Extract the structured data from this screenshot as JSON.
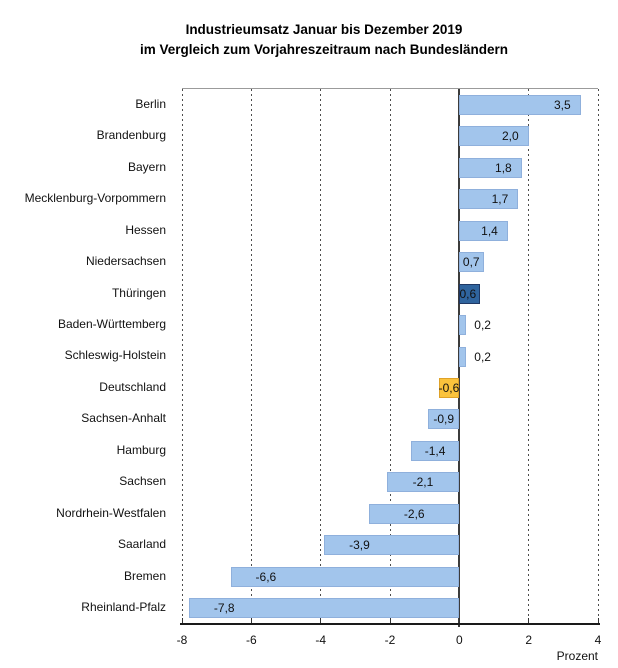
{
  "title": {
    "line1": "Industrieumsatz Januar bis Dezember 2019",
    "line2": "im Vergleich zum Vorjahreszeitraum nach Bundesländern"
  },
  "chart_data": {
    "type": "bar",
    "orientation": "horizontal",
    "title": "Industrieumsatz Januar bis Dezember 2019 im Vergleich zum Vorjahreszeitraum nach Bundesländern",
    "xlabel": "Prozent",
    "xlim": [
      -8,
      4
    ],
    "xticks": [
      -8,
      -6,
      -4,
      -2,
      0,
      2,
      4
    ],
    "xtick_labels": [
      "-8",
      "-6",
      "-4",
      "-2",
      "0",
      "2",
      "4"
    ],
    "grid": "dashed-vertical",
    "legend": "none",
    "categories": [
      "Berlin",
      "Brandenburg",
      "Bayern",
      "Mecklenburg-Vorpommern",
      "Hessen",
      "Niedersachsen",
      "Thüringen",
      "Baden-Württemberg",
      "Schleswig-Holstein",
      "Deutschland",
      "Sachsen-Anhalt",
      "Hamburg",
      "Sachsen",
      "Nordrhein-Westfalen",
      "Saarland",
      "Bremen",
      "Rheinland-Pfalz"
    ],
    "values": [
      3.5,
      2.0,
      1.8,
      1.7,
      1.4,
      0.7,
      0.6,
      0.2,
      0.2,
      -0.6,
      -0.9,
      -1.4,
      -2.1,
      -2.6,
      -3.9,
      -6.6,
      -7.8
    ],
    "value_labels": [
      "3,5",
      "2,0",
      "1,8",
      "1,7",
      "1,4",
      "0,7",
      "0,6",
      "0,2",
      "0,2",
      "-0,6",
      "-0,9",
      "-1,4",
      "-2,1",
      "-2,6",
      "-3,9",
      "-6,6",
      "-7,8"
    ],
    "highlighted_bars": {
      "6": {
        "note": "Thüringen",
        "fill": "#2f649e",
        "border": "#1f3864"
      },
      "9": {
        "note": "Deutschland",
        "fill": "#fbc33c",
        "border": "#dfa228"
      }
    }
  },
  "colors": {
    "bar_default_fill": "#a2c5ec",
    "bar_default_border": "#8fb0dc",
    "highlight_dark_blue": "#2f649e",
    "highlight_yellow": "#fbc33c",
    "gridline": "#4d4d4d",
    "axis_line": "#1a1a1a",
    "text": "#111111"
  }
}
